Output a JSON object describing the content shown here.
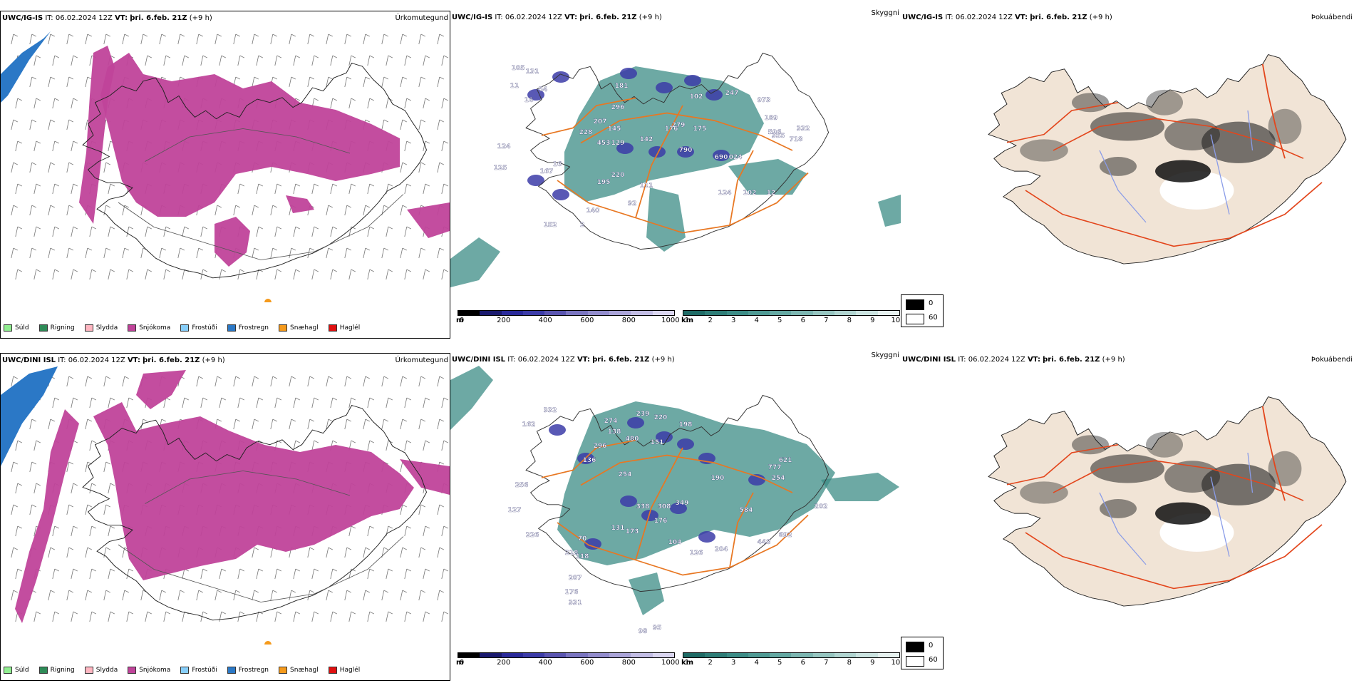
{
  "rows": [
    {
      "precip": {
        "model": "UWC/IG-IS",
        "it_label": "IT:",
        "it_value": "06.02.2024 12Z",
        "vt_label": "VT:",
        "vt_value": "þri. 6.feb. 21Z",
        "lead": "(+9 h)",
        "title": "Úrkomutegund"
      },
      "vis": {
        "model": "UWC/IG-IS",
        "it_label": "IT:",
        "it_value": "06.02.2024 12Z",
        "vt_label": "VT:",
        "vt_value": "þri. 6.feb. 21Z",
        "lead": "(+9 h)",
        "title": "Skyggni",
        "numbers": [
          "105",
          "131",
          "11",
          "16",
          "124",
          "54",
          "207",
          "228",
          "453",
          "16",
          "125",
          "167",
          "195",
          "220",
          "111",
          "92",
          "140",
          "152",
          "2",
          "296",
          "145",
          "129",
          "142",
          "176",
          "279",
          "175",
          "181",
          "102",
          "790",
          "690",
          "024",
          "247",
          "973",
          "189",
          "596",
          "355",
          "718",
          "332",
          "124",
          "102",
          "12"
        ]
      },
      "fog": {
        "model": "UWC/IG-IS",
        "it_label": "IT:",
        "it_value": "06.02.2024 12Z",
        "vt_label": "VT:",
        "vt_value": "þri. 6.feb. 21Z",
        "lead": "(+9 h)",
        "title": "Þokuábendi"
      }
    },
    {
      "precip": {
        "model": "UWC/DINI ISL",
        "it_label": "IT:",
        "it_value": "06.02.2024 12Z",
        "vt_label": "VT:",
        "vt_value": "þri. 6.feb. 21Z",
        "lead": "(+9 h)",
        "title": "Úrkomutegund"
      },
      "vis": {
        "model": "UWC/DINI ISL",
        "it_label": "IT:",
        "it_value": "06.02.2024 12Z",
        "vt_label": "VT:",
        "vt_value": "þri. 6.feb. 21Z",
        "lead": "(+9 h)",
        "title": "Skyggni",
        "numbers": [
          "332",
          "162",
          "256",
          "127",
          "226",
          "274",
          "138",
          "296",
          "136",
          "480",
          "254",
          "239",
          "220",
          "198",
          "151",
          "338",
          "173",
          "176",
          "308",
          "349",
          "190",
          "584",
          "777",
          "621",
          "254",
          "692",
          "448",
          "204",
          "126",
          "104",
          "131",
          "70",
          "218",
          "118",
          "207",
          "176",
          "331",
          "202",
          "95",
          "98"
        ]
      },
      "fog": {
        "model": "UWC/DINI ISL",
        "it_label": "IT:",
        "it_value": "06.02.2024 12Z",
        "vt_label": "VT:",
        "vt_value": "þri. 6.feb. 21Z",
        "lead": "(+9 h)",
        "title": "Þokuábendi"
      }
    }
  ],
  "precip_legend": [
    {
      "label": "Súld",
      "color": "#90ee90"
    },
    {
      "label": "Rigning",
      "color": "#2e8b57"
    },
    {
      "label": "Slydda",
      "color": "#ffb6c1"
    },
    {
      "label": "Snjókoma",
      "color": "#c0439a"
    },
    {
      "label": "Frostúði",
      "color": "#87cefa"
    },
    {
      "label": "Frostregn",
      "color": "#2b78c6"
    },
    {
      "label": "Snæhagl",
      "color": "#f59a1c"
    },
    {
      "label": "Haglél",
      "color": "#e01010"
    }
  ],
  "vis_colorbar_m": {
    "unit": "m",
    "ticks": [
      "0",
      "200",
      "400",
      "600",
      "800",
      "1000"
    ],
    "colors": [
      "#000000",
      "#1a1a6e",
      "#2a2a9a",
      "#3c3ca8",
      "#5a55b0",
      "#7a75c0",
      "#928ccc",
      "#aaa4d8",
      "#c2bde4",
      "#dad6f0"
    ]
  },
  "vis_colorbar_km": {
    "unit": "km",
    "ticks": [
      "1",
      "2",
      "3",
      "4",
      "5",
      "6",
      "7",
      "8",
      "9",
      "10"
    ],
    "colors": [
      "#1f6b66",
      "#2e7d77",
      "#3c8c86",
      "#4f9a94",
      "#64a8a2",
      "#7cb6b1",
      "#96c5c0",
      "#b0d4d0",
      "#cbe3e0",
      "#e6f1ef"
    ]
  },
  "fog_legend": [
    {
      "label": "0",
      "color": "#000000"
    },
    {
      "label": "60",
      "color": "#ffffff"
    }
  ],
  "colors": {
    "snow": "#c0439a",
    "frz_rain": "#2b78c6",
    "frz_drizzle": "#87cefa",
    "vis_teal": "#3c8c86",
    "vis_blue": "#3c3ca8",
    "roads": "#e87722",
    "fog_land": "#f1e4d6",
    "fog_road": "#e3461c",
    "fog_river": "#8a9ce8"
  }
}
